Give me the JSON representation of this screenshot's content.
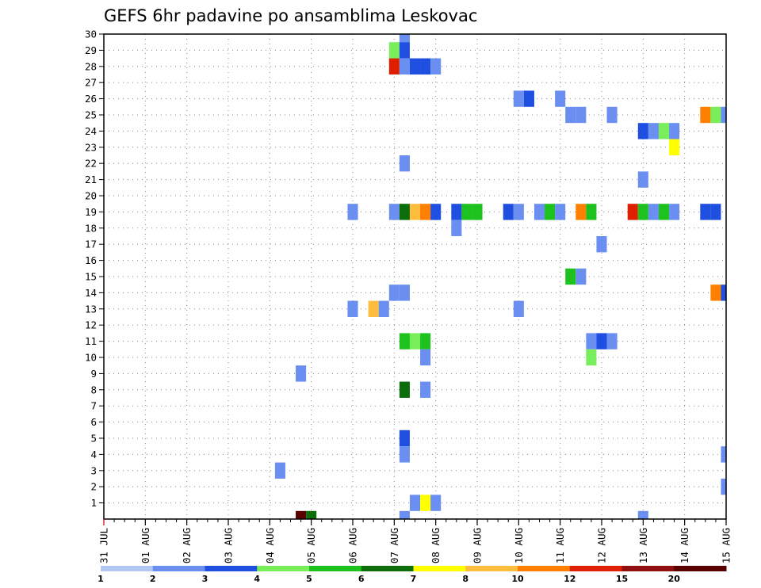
{
  "chart_data": {
    "type": "heatmap",
    "title": "GEFS 6hr padavine po ansamblima Leskovac",
    "xlabel": "",
    "ylabel": "",
    "x_ticks": [
      "31 JUL",
      "01 AUG",
      "02 AUG",
      "03 AUG",
      "04 AUG",
      "05 AUG",
      "06 AUG",
      "07 AUG",
      "08 AUG",
      "09 AUG",
      "10 AUG",
      "11 AUG",
      "12 AUG",
      "13 AUG",
      "14 AUG",
      "15 AUG"
    ],
    "x_range_days": [
      0,
      15
    ],
    "y_range": [
      0,
      30
    ],
    "y_ticks": [
      1,
      2,
      3,
      4,
      5,
      6,
      7,
      8,
      9,
      10,
      11,
      12,
      13,
      14,
      15,
      16,
      17,
      18,
      19,
      20,
      21,
      22,
      23,
      24,
      25,
      26,
      27,
      28,
      29,
      30
    ],
    "grid": true,
    "colorbar": {
      "labels": [
        "1",
        "2",
        "3",
        "4",
        "5",
        "6",
        "7",
        "8",
        "10",
        "12",
        "15",
        "20"
      ],
      "colors": [
        "#b3c7f7",
        "#6b8ff0",
        "#1f4fe0",
        "#78ee5a",
        "#1ec21e",
        "#0b6e0b",
        "#ffff00",
        "#ffbd3f",
        "#ff8000",
        "#e01e00",
        "#901010",
        "#5a0000"
      ]
    },
    "cells": [
      {
        "m": 30,
        "d": 7.25,
        "l": 1
      },
      {
        "m": 29,
        "d": 7.0,
        "l": 3
      },
      {
        "m": 29,
        "d": 7.25,
        "l": 2
      },
      {
        "m": 28,
        "d": 7.0,
        "l": 9
      },
      {
        "m": 28,
        "d": 7.25,
        "l": 1
      },
      {
        "m": 28,
        "d": 7.5,
        "l": 2
      },
      {
        "m": 28,
        "d": 7.75,
        "l": 2
      },
      {
        "m": 28,
        "d": 8.0,
        "l": 1
      },
      {
        "m": 26,
        "d": 10.0,
        "l": 1
      },
      {
        "m": 26,
        "d": 10.25,
        "l": 2
      },
      {
        "m": 26,
        "d": 11.0,
        "l": 1
      },
      {
        "m": 25,
        "d": 11.25,
        "l": 1
      },
      {
        "m": 25,
        "d": 11.5,
        "l": 1
      },
      {
        "m": 25,
        "d": 12.25,
        "l": 1
      },
      {
        "m": 25,
        "d": 14.5,
        "l": 8
      },
      {
        "m": 25,
        "d": 14.75,
        "l": 3
      },
      {
        "m": 25,
        "d": 15.0,
        "l": 1
      },
      {
        "m": 24,
        "d": 13.0,
        "l": 2
      },
      {
        "m": 24,
        "d": 13.25,
        "l": 1
      },
      {
        "m": 24,
        "d": 13.5,
        "l": 3
      },
      {
        "m": 24,
        "d": 13.75,
        "l": 1
      },
      {
        "m": 23,
        "d": 13.75,
        "l": 6
      },
      {
        "m": 22,
        "d": 7.25,
        "l": 1
      },
      {
        "m": 21,
        "d": 13.0,
        "l": 1
      },
      {
        "m": 19,
        "d": 6.0,
        "l": 1
      },
      {
        "m": 19,
        "d": 7.0,
        "l": 1
      },
      {
        "m": 19,
        "d": 7.25,
        "l": 5
      },
      {
        "m": 19,
        "d": 7.5,
        "l": 7
      },
      {
        "m": 19,
        "d": 7.75,
        "l": 8
      },
      {
        "m": 19,
        "d": 8.0,
        "l": 2
      },
      {
        "m": 19,
        "d": 8.5,
        "l": 2
      },
      {
        "m": 19,
        "d": 8.75,
        "l": 4
      },
      {
        "m": 19,
        "d": 9.0,
        "l": 4
      },
      {
        "m": 19,
        "d": 9.75,
        "l": 2
      },
      {
        "m": 19,
        "d": 10.0,
        "l": 1
      },
      {
        "m": 19,
        "d": 10.5,
        "l": 1
      },
      {
        "m": 19,
        "d": 10.75,
        "l": 4
      },
      {
        "m": 19,
        "d": 11.0,
        "l": 1
      },
      {
        "m": 19,
        "d": 11.5,
        "l": 8
      },
      {
        "m": 19,
        "d": 11.75,
        "l": 4
      },
      {
        "m": 19,
        "d": 12.75,
        "l": 9
      },
      {
        "m": 19,
        "d": 13.0,
        "l": 4
      },
      {
        "m": 19,
        "d": 13.25,
        "l": 1
      },
      {
        "m": 19,
        "d": 13.5,
        "l": 4
      },
      {
        "m": 19,
        "d": 13.75,
        "l": 1
      },
      {
        "m": 19,
        "d": 14.5,
        "l": 2
      },
      {
        "m": 19,
        "d": 14.75,
        "l": 2
      },
      {
        "m": 18,
        "d": 8.5,
        "l": 1
      },
      {
        "m": 17,
        "d": 12.0,
        "l": 1
      },
      {
        "m": 15,
        "d": 11.25,
        "l": 4
      },
      {
        "m": 15,
        "d": 11.5,
        "l": 1
      },
      {
        "m": 14,
        "d": 7.0,
        "l": 1
      },
      {
        "m": 14,
        "d": 7.25,
        "l": 1
      },
      {
        "m": 14,
        "d": 14.75,
        "l": 8
      },
      {
        "m": 14,
        "d": 15.0,
        "l": 2
      },
      {
        "m": 13,
        "d": 6.0,
        "l": 1
      },
      {
        "m": 13,
        "d": 6.5,
        "l": 7
      },
      {
        "m": 13,
        "d": 6.75,
        "l": 1
      },
      {
        "m": 13,
        "d": 10.0,
        "l": 1
      },
      {
        "m": 11,
        "d": 7.25,
        "l": 4
      },
      {
        "m": 11,
        "d": 7.5,
        "l": 3
      },
      {
        "m": 11,
        "d": 7.75,
        "l": 4
      },
      {
        "m": 11,
        "d": 11.75,
        "l": 1
      },
      {
        "m": 11,
        "d": 12.0,
        "l": 2
      },
      {
        "m": 11,
        "d": 12.25,
        "l": 1
      },
      {
        "m": 10,
        "d": 7.75,
        "l": 1
      },
      {
        "m": 10,
        "d": 11.75,
        "l": 3
      },
      {
        "m": 9,
        "d": 4.75,
        "l": 1
      },
      {
        "m": 8,
        "d": 7.25,
        "l": 5
      },
      {
        "m": 8,
        "d": 7.75,
        "l": 1
      },
      {
        "m": 5,
        "d": 7.25,
        "l": 2
      },
      {
        "m": 4,
        "d": 7.25,
        "l": 1
      },
      {
        "m": 4,
        "d": 15.0,
        "l": 1
      },
      {
        "m": 3,
        "d": 4.25,
        "l": 1
      },
      {
        "m": 2,
        "d": 15.0,
        "l": 1
      },
      {
        "m": 1,
        "d": 7.5,
        "l": 1
      },
      {
        "m": 1,
        "d": 7.75,
        "l": 6
      },
      {
        "m": 1,
        "d": 8.0,
        "l": 1
      },
      {
        "m": 0,
        "d": 4.75,
        "l": 11
      },
      {
        "m": 0,
        "d": 5.0,
        "l": 5
      },
      {
        "m": 0,
        "d": 7.25,
        "l": 1
      },
      {
        "m": 0,
        "d": 13.0,
        "l": 1
      }
    ]
  }
}
